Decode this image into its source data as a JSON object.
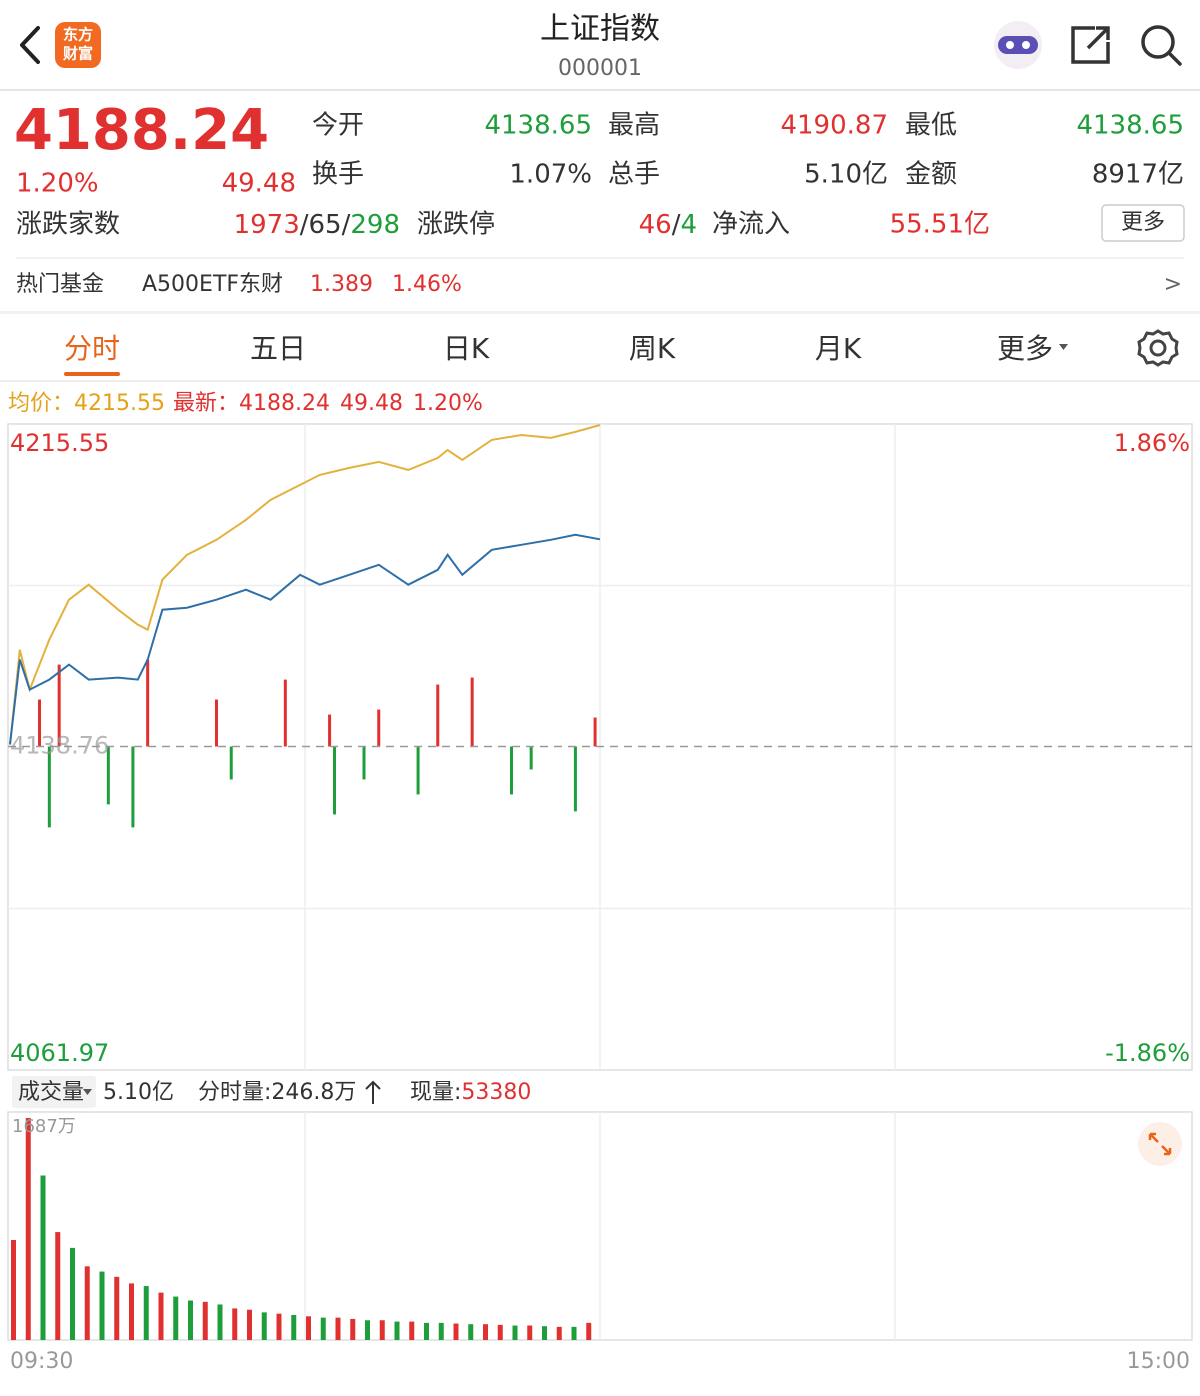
{
  "header": {
    "logo": [
      "东方",
      "财富"
    ],
    "title": "上证指数",
    "code": "000001"
  },
  "quote": {
    "price": "4188.24",
    "percent": "1.20%",
    "change": "49.48",
    "stats": [
      {
        "label": "今开",
        "value": "4138.65",
        "color": "#1e9e3a"
      },
      {
        "label": "最高",
        "value": "4190.87",
        "color": "#e0302f"
      },
      {
        "label": "最低",
        "value": "4138.65",
        "color": "#1e9e3a"
      },
      {
        "label": "换手",
        "value": "1.07%",
        "color": "#333333"
      },
      {
        "label": "总手",
        "value": "5.10亿",
        "color": "#333333"
      },
      {
        "label": "金额",
        "value": "8917亿",
        "color": "#333333"
      }
    ],
    "breadth": {
      "label": "涨跌家数",
      "up": "1973",
      "flat": "65",
      "down": "298",
      "separator": "/"
    },
    "limit": {
      "label": "涨跌停",
      "up": "46",
      "down": "4",
      "separator": "/"
    },
    "netflow": {
      "label": "净流入",
      "value": "55.51亿"
    },
    "more": "更多"
  },
  "hot_fund": {
    "label": "热门基金",
    "name": "A500ETF东财",
    "price": "1.389",
    "percent": "1.46%",
    "arrow": ">"
  },
  "tabs": {
    "items": [
      "分时",
      "五日",
      "日K",
      "周K",
      "月K",
      "更多"
    ],
    "active": 0
  },
  "legend": {
    "avg_label": "均价：",
    "avg": "4215.55",
    "last_label": "最新：",
    "last": "4188.24",
    "change": "49.48",
    "percent": "1.20%"
  },
  "volume_header": {
    "selector": "成交量",
    "total": "5.10亿",
    "minute_volume": "分时量:246.8万",
    "current_label": "现量:",
    "current": "53380"
  },
  "chart_data": [
    {
      "type": "line",
      "x": [
        0,
        2,
        4,
        8,
        12,
        16,
        22,
        26,
        28,
        31,
        36,
        42,
        48,
        53,
        59,
        63,
        69,
        75,
        81,
        87,
        89,
        92,
        98,
        104,
        110,
        115,
        120
      ],
      "xlim": [
        0,
        240
      ],
      "ylim": [
        4061.97,
        4215.55
      ],
      "yticks": [
        4061.97,
        4138.76,
        4215.55
      ],
      "y2lim": [
        -1.86,
        1.86
      ],
      "y2ticks": [
        {
          "value": 1.86,
          "label": "1.86%"
        },
        {
          "value": -1.86,
          "label": "-1.86%"
        }
      ],
      "series": [
        {
          "color": "#e3b23c",
          "values": [
            4139.24,
            4161.89,
            4152.36,
            4164.28,
            4173.82,
            4177.4,
            4171.43,
            4167.86,
            4166.66,
            4178.59,
            4184.55,
            4188.13,
            4192.9,
            4197.67,
            4201.25,
            4203.63,
            4205.3,
            4206.73,
            4204.82,
            4207.68,
            4209.59,
            4207.21,
            4212.0,
            4213.17,
            4212.46,
            4213.89,
            4215.55
          ]
        },
        {
          "color": "#2f6fa8",
          "values": [
            4139.24,
            4159.51,
            4152.36,
            4154.74,
            4158.32,
            4154.74,
            4155.22,
            4154.74,
            4159.51,
            4171.43,
            4171.91,
            4173.82,
            4176.2,
            4173.82,
            4179.78,
            4177.4,
            4179.78,
            4182.17,
            4177.4,
            4180.97,
            4184.55,
            4179.78,
            4185.74,
            4186.93,
            4188.13,
            4189.32,
            4188.24
          ]
        }
      ],
      "bars": {
        "x": [
          6,
          8,
          10,
          20,
          25,
          28,
          42,
          45,
          56,
          65,
          66,
          72,
          75,
          83,
          87,
          94,
          102,
          106,
          115,
          119
        ],
        "values": [
          4149.97,
          4119.44,
          4158.32,
          4124.93,
          4119.44,
          4159.51,
          4149.97,
          4130.89,
          4154.74,
          4146.39,
          4122.54,
          4130.89,
          4147.58,
          4127.31,
          4153.55,
          4155.22,
          4127.31,
          4133.27,
          4123.26,
          4145.68
        ],
        "up_color": "#e0302f",
        "down_color": "#1e9e3a"
      }
    },
    {
      "type": "bar",
      "x": [
        0,
        3,
        6,
        9,
        12,
        15,
        18,
        21,
        24,
        27,
        30,
        33,
        36,
        39,
        42,
        45,
        48,
        51,
        54,
        57,
        60,
        63,
        66,
        69,
        72,
        75,
        78,
        81,
        84,
        87,
        90,
        93,
        96,
        99,
        102,
        105,
        108,
        111,
        114,
        117
      ],
      "xlim": [
        0,
        240
      ],
      "xticks": [
        {
          "value": 0,
          "label": "09:30"
        },
        {
          "value": 240,
          "label": "15:00"
        }
      ],
      "ylim": [
        0,
        1687
      ],
      "yticks": [
        {
          "value": 1687,
          "label": "1687万"
        }
      ],
      "values": [
        760,
        1687,
        1250,
        820,
        700,
        560,
        520,
        480,
        430,
        410,
        360,
        330,
        300,
        290,
        270,
        240,
        230,
        210,
        200,
        190,
        180,
        170,
        170,
        160,
        150,
        150,
        140,
        140,
        130,
        130,
        125,
        120,
        120,
        115,
        110,
        110,
        105,
        100,
        100,
        130
      ],
      "colors": [
        "#e0302f",
        "#e0302f",
        "#1e9e3a",
        "#e0302f",
        "#1e9e3a",
        "#e0302f",
        "#1e9e3a",
        "#e0302f",
        "#e0302f",
        "#1e9e3a",
        "#e0302f",
        "#1e9e3a",
        "#1e9e3a",
        "#e0302f",
        "#1e9e3a",
        "#e0302f",
        "#e0302f",
        "#1e9e3a",
        "#e0302f",
        "#1e9e3a",
        "#e0302f",
        "#1e9e3a",
        "#e0302f",
        "#e0302f",
        "#1e9e3a",
        "#e0302f",
        "#1e9e3a",
        "#e0302f",
        "#1e9e3a",
        "#1e9e3a",
        "#e0302f",
        "#1e9e3a",
        "#e0302f",
        "#e0302f",
        "#1e9e3a",
        "#e0302f",
        "#1e9e3a",
        "#e0302f",
        "#1e9e3a",
        "#e0302f"
      ]
    }
  ]
}
